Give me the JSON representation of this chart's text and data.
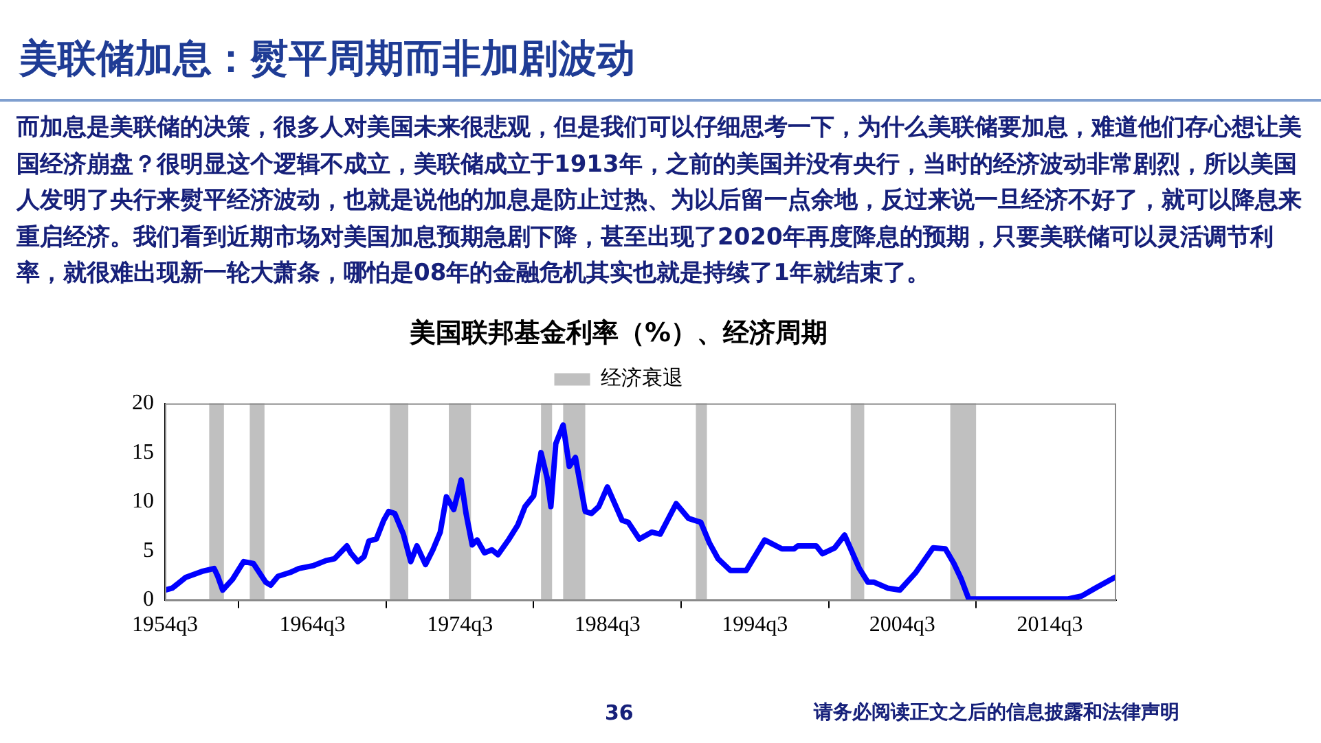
{
  "chart_data": {
    "type": "line",
    "title": "美国联邦基金利率（%）、经济周期",
    "annotations": [
      "美联储加息：熨平周期而非加剧波动",
      "而加息是美联储的决策，很多人对美国未来很悲观，但是我们可以仔细思考一下，为什么美联储要加息，难道他们存心想让美国经济崩盘？很明显这个逻辑不成立，美联储成立于1913年，之前的美国并没有央行，当时的经济波动非常剧烈，所以美国人发明了央行来熨平经济波动，也就是说他的加息是防止过热、为以后留一点余地，反过来说一旦经济不好了，就可以降息来重启经济。我们看到近期市场对美国加息预期急剧下降，甚至出现了2020年再度降息的预期，只要美联储可以灵活调节利率，就很难出现新一轮大萧条，哪怕是08年的金融危机其实也就是持续了1年就结束了。",
      "36",
      "请务必阅读正文之后的信息披露和法律声明"
    ],
    "x": [
      "1954-07",
      "1955-01",
      "1955-12",
      "1957-01",
      "1957-11",
      "1958-02",
      "1958-06",
      "1959-02",
      "1959-11",
      "1960-07",
      "1961-05",
      "1961-09",
      "1962-03",
      "1963-01",
      "1963-08",
      "1964-08",
      "1965-06",
      "1966-01",
      "1966-11",
      "1967-02",
      "1967-08",
      "1968-01",
      "1968-05",
      "1968-11",
      "1969-05",
      "1969-09",
      "1970-02",
      "1970-09",
      "1971-03",
      "1971-08",
      "1972-03",
      "1972-09",
      "1973-03",
      "1973-08",
      "1974-02",
      "1974-08",
      "1974-12",
      "1975-05",
      "1975-09",
      "1976-03",
      "1976-09",
      "1977-02",
      "1977-11",
      "1978-06",
      "1978-12",
      "1979-07",
      "1980-01",
      "1980-06",
      "1980-09",
      "1981-01",
      "1981-07",
      "1981-12",
      "1982-05",
      "1983-01",
      "1983-06",
      "1983-12",
      "1984-07",
      "1985-07",
      "1985-12",
      "1986-09",
      "1987-07",
      "1988-02",
      "1989-03",
      "1990-01",
      "1990-11",
      "1991-06",
      "1992-01",
      "1992-11",
      "1993-12",
      "1995-03",
      "1996-05",
      "1997-03",
      "1997-06",
      "1998-09",
      "1999-02",
      "1999-12",
      "2000-08",
      "2001-08",
      "2002-03",
      "2002-08",
      "2003-07",
      "2004-05",
      "2005-06",
      "2006-08",
      "2007-06",
      "2008-01",
      "2008-07",
      "2009-01",
      "2010-02",
      "2015-10",
      "2016-09",
      "2017-08",
      "2018-12"
    ],
    "series": [
      {
        "color": "#0000ff",
        "values": [
          1.0,
          1.2,
          2.3,
          2.9,
          3.2,
          2.4,
          1.0,
          2.1,
          3.9,
          3.7,
          1.8,
          1.5,
          2.4,
          2.8,
          3.2,
          3.5,
          4.0,
          4.2,
          5.5,
          4.8,
          3.9,
          4.4,
          6.0,
          6.2,
          8.1,
          9.0,
          8.8,
          6.7,
          3.9,
          5.5,
          3.6,
          5.1,
          6.9,
          10.5,
          9.2,
          12.2,
          8.8,
          5.6,
          6.1,
          4.8,
          5.1,
          4.6,
          6.2,
          7.6,
          9.5,
          10.6,
          15.0,
          12.4,
          9.5,
          15.9,
          17.8,
          13.6,
          14.5,
          9.0,
          8.8,
          9.5,
          11.5,
          8.1,
          7.9,
          6.2,
          6.9,
          6.7,
          9.8,
          8.3,
          7.9,
          5.8,
          4.2,
          3.0,
          3.0,
          6.1,
          5.2,
          5.2,
          5.5,
          5.5,
          4.7,
          5.3,
          6.6,
          3.2,
          1.8,
          1.8,
          1.2,
          1.0,
          2.8,
          5.3,
          5.2,
          3.7,
          2.1,
          0.1,
          0.1,
          0.1,
          0.4,
          1.2,
          2.3
        ]
      }
    ],
    "xlim": [
      "1954-07",
      "2019-01"
    ],
    "xticks": [
      {
        "value": "1954-07",
        "label": "1954q3"
      },
      {
        "value": "1964-07",
        "label": "1964q3"
      },
      {
        "value": "1974-07",
        "label": "1974q3"
      },
      {
        "value": "1984-07",
        "label": "1984q3"
      },
      {
        "value": "1994-07",
        "label": "1994q3"
      },
      {
        "value": "2004-07",
        "label": "2004q3"
      },
      {
        "value": "2014-07",
        "label": "2014q3"
      }
    ],
    "ylim": [
      0,
      20
    ],
    "yticks": [
      0,
      5,
      10,
      15,
      20
    ],
    "bands": [
      {
        "axis": "x",
        "from": "1957-07",
        "to": "1958-07",
        "label": "经济衰退",
        "color": "#c0c0c0"
      },
      {
        "axis": "x",
        "from": "1960-04",
        "to": "1961-04",
        "color": "#c0c0c0"
      },
      {
        "axis": "x",
        "from": "1969-10",
        "to": "1971-01",
        "color": "#c0c0c0"
      },
      {
        "axis": "x",
        "from": "1973-10",
        "to": "1975-04",
        "color": "#c0c0c0"
      },
      {
        "axis": "x",
        "from": "1980-01",
        "to": "1980-10",
        "color": "#c0c0c0"
      },
      {
        "axis": "x",
        "from": "1981-07",
        "to": "1983-01",
        "color": "#c0c0c0"
      },
      {
        "axis": "x",
        "from": "1990-07",
        "to": "1991-04",
        "color": "#c0c0c0"
      },
      {
        "axis": "x",
        "from": "2001-01",
        "to": "2001-12",
        "color": "#c0c0c0"
      },
      {
        "axis": "x",
        "from": "2007-10",
        "to": "2009-07",
        "color": "#c0c0c0"
      }
    ],
    "legend": "top",
    "grid": false,
    "line_style": "solid"
  }
}
